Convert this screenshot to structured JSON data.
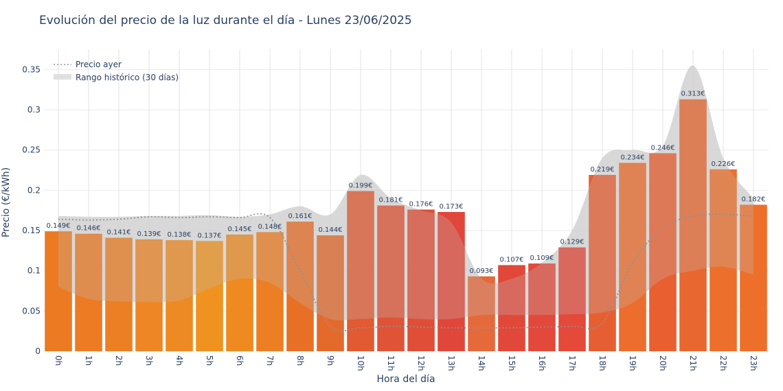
{
  "chart_data": {
    "type": "bar",
    "title": "Evolución del precio de la luz durante el día - Lunes 23/06/2025",
    "xlabel": "Hora del día",
    "ylabel": "Precio (€/kWh)",
    "ylim": [
      0,
      0.375
    ],
    "yticks": [
      0,
      0.05,
      0.1,
      0.15,
      0.2,
      0.25,
      0.3,
      0.35
    ],
    "ytick_labels": [
      "0",
      "0.05",
      "0.1",
      "0.15",
      "0.2",
      "0.25",
      "0.3",
      "0.35"
    ],
    "grid": true,
    "legend_position": "top-left",
    "categories": [
      "0h",
      "1h",
      "2h",
      "3h",
      "4h",
      "5h",
      "6h",
      "7h",
      "8h",
      "9h",
      "10h",
      "11h",
      "12h",
      "13h",
      "14h",
      "15h",
      "16h",
      "17h",
      "18h",
      "19h",
      "20h",
      "21h",
      "22h",
      "23h"
    ],
    "series": [
      {
        "values": [
          0.149,
          0.146,
          0.141,
          0.139,
          0.138,
          0.137,
          0.145,
          0.148,
          0.161,
          0.144,
          0.199,
          0.181,
          0.176,
          0.173,
          0.093,
          0.107,
          0.109,
          0.129,
          0.219,
          0.234,
          0.246,
          0.313,
          0.226,
          0.182
        ],
        "labels": [
          "0.149€",
          "0.146€",
          "0.141€",
          "0.139€",
          "0.138€",
          "0.137€",
          "0.145€",
          "0.148€",
          "0.161€",
          "0.144€",
          "0.199€",
          "0.181€",
          "0.176€",
          "0.173€",
          "0.093€",
          "0.107€",
          "0.109€",
          "0.129€",
          "0.219€",
          "0.234€",
          "0.246€",
          "0.313€",
          "0.226€",
          "0.182€"
        ]
      },
      {
        "name": "Precio ayer",
        "type": "line",
        "style": "dotted",
        "color": "#8f9096",
        "values": [
          0.164,
          0.163,
          0.164,
          0.167,
          0.166,
          0.167,
          0.166,
          0.166,
          0.1,
          0.031,
          0.029,
          0.031,
          0.03,
          0.029,
          0.029,
          0.029,
          0.03,
          0.031,
          0.035,
          0.11,
          0.153,
          0.168,
          0.17,
          0.168
        ]
      },
      {
        "name": "Rango histórico (30 días)",
        "type": "area",
        "color": "#d8d8d8",
        "upper": [
          0.168,
          0.167,
          0.167,
          0.168,
          0.168,
          0.169,
          0.167,
          0.17,
          0.18,
          0.17,
          0.219,
          0.19,
          0.175,
          0.16,
          0.09,
          0.09,
          0.11,
          0.15,
          0.24,
          0.25,
          0.255,
          0.355,
          0.24,
          0.19
        ],
        "lower": [
          0.08,
          0.065,
          0.062,
          0.061,
          0.063,
          0.078,
          0.09,
          0.085,
          0.06,
          0.04,
          0.04,
          0.042,
          0.04,
          0.04,
          0.045,
          0.045,
          0.045,
          0.046,
          0.048,
          0.06,
          0.09,
          0.1,
          0.105,
          0.095
        ]
      }
    ]
  }
}
